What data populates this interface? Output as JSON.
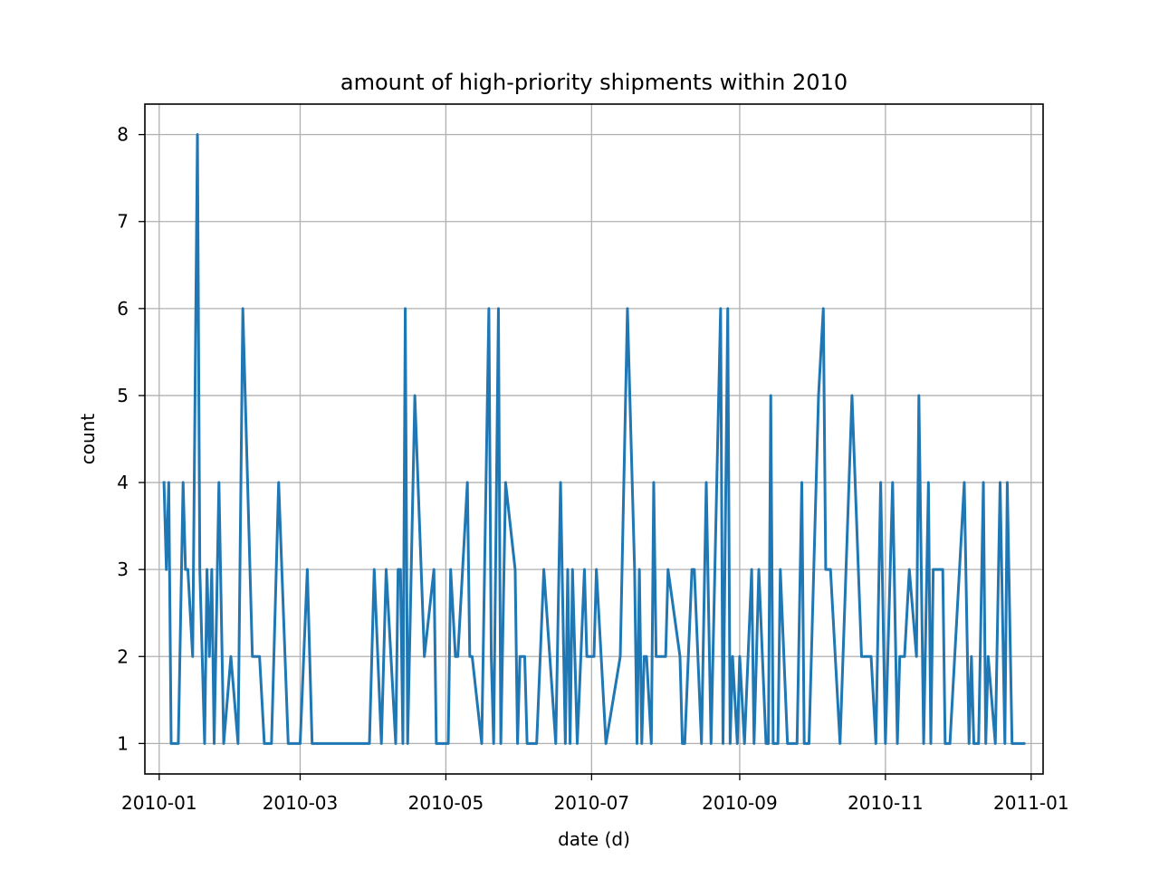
{
  "chart_data": {
    "type": "line",
    "title": "amount of high-priority shipments within 2010",
    "xlabel": "date (d)",
    "ylabel": "count",
    "x_tick_labels": [
      "2010-01",
      "2010-03",
      "2010-05",
      "2010-07",
      "2010-09",
      "2010-11",
      "2011-01"
    ],
    "y_tick_labels": [
      "1",
      "2",
      "3",
      "4",
      "5",
      "6",
      "7",
      "8"
    ],
    "xlim": [
      "2009-12-26",
      "2011-01-06"
    ],
    "ylim": [
      0.65,
      8.35
    ],
    "grid": true,
    "colors": {
      "series": "#1f77b4",
      "grid": "#b0b0b0",
      "axes": "#000000"
    },
    "series": [
      {
        "dates": [
          "2010-01-03",
          "2010-01-04",
          "2010-01-05",
          "2010-01-06",
          "2010-01-07",
          "2010-01-09",
          "2010-01-11",
          "2010-01-12",
          "2010-01-13",
          "2010-01-15",
          "2010-01-17",
          "2010-01-18",
          "2010-01-20",
          "2010-01-21",
          "2010-01-22",
          "2010-01-23",
          "2010-01-24",
          "2010-01-26",
          "2010-01-28",
          "2010-01-31",
          "2010-02-03",
          "2010-02-05",
          "2010-02-09",
          "2010-02-11",
          "2010-02-12",
          "2010-02-14",
          "2010-02-17",
          "2010-02-19",
          "2010-02-20",
          "2010-02-24",
          "2010-02-28",
          "2010-03-01",
          "2010-03-04",
          "2010-03-06",
          "2010-03-08",
          "2010-03-10",
          "2010-03-15",
          "2010-03-20",
          "2010-03-25",
          "2010-03-30",
          "2010-04-01",
          "2010-04-04",
          "2010-04-06",
          "2010-04-10",
          "2010-04-11",
          "2010-04-12",
          "2010-04-13",
          "2010-04-14",
          "2010-04-15",
          "2010-04-18",
          "2010-04-22",
          "2010-04-26",
          "2010-04-27",
          "2010-05-01",
          "2010-05-02",
          "2010-05-03",
          "2010-05-05",
          "2010-05-06",
          "2010-05-10",
          "2010-05-11",
          "2010-05-12",
          "2010-05-16",
          "2010-05-19",
          "2010-05-20",
          "2010-05-21",
          "2010-05-23",
          "2010-05-24",
          "2010-05-26",
          "2010-05-30",
          "2010-05-31",
          "2010-06-01",
          "2010-06-03",
          "2010-06-04",
          "2010-06-05",
          "2010-06-08",
          "2010-06-11",
          "2010-06-16",
          "2010-06-18",
          "2010-06-20",
          "2010-06-21",
          "2010-06-22",
          "2010-06-23",
          "2010-06-25",
          "2010-06-28",
          "2010-06-29",
          "2010-07-02",
          "2010-07-03",
          "2010-07-07",
          "2010-07-13",
          "2010-07-16",
          "2010-07-19",
          "2010-07-20",
          "2010-07-21",
          "2010-07-22",
          "2010-07-23",
          "2010-07-24",
          "2010-07-26",
          "2010-07-27",
          "2010-07-28",
          "2010-07-30",
          "2010-08-01",
          "2010-08-02",
          "2010-08-07",
          "2010-08-08",
          "2010-08-09",
          "2010-08-12",
          "2010-08-13",
          "2010-08-16",
          "2010-08-18",
          "2010-08-20",
          "2010-08-24",
          "2010-08-25",
          "2010-08-27",
          "2010-08-28",
          "2010-08-29",
          "2010-08-31",
          "2010-09-01",
          "2010-09-03",
          "2010-09-06",
          "2010-09-07",
          "2010-09-09",
          "2010-09-12",
          "2010-09-13",
          "2010-09-14",
          "2010-09-15",
          "2010-09-17",
          "2010-09-18",
          "2010-09-21",
          "2010-09-25",
          "2010-09-27",
          "2010-09-28",
          "2010-09-30",
          "2010-10-04",
          "2010-10-06",
          "2010-10-07",
          "2010-10-09",
          "2010-10-13",
          "2010-10-18",
          "2010-10-22",
          "2010-10-26",
          "2010-10-28",
          "2010-10-30",
          "2010-11-01",
          "2010-11-04",
          "2010-11-06",
          "2010-11-07",
          "2010-11-08",
          "2010-11-09",
          "2010-11-11",
          "2010-11-14",
          "2010-11-15",
          "2010-11-17",
          "2010-11-19",
          "2010-11-20",
          "2010-11-21",
          "2010-11-25",
          "2010-11-26",
          "2010-11-27",
          "2010-11-28",
          "2010-12-02",
          "2010-12-04",
          "2010-12-06",
          "2010-12-07",
          "2010-12-08",
          "2010-12-09",
          "2010-12-10",
          "2010-12-12",
          "2010-12-13",
          "2010-12-14",
          "2010-12-17",
          "2010-12-19",
          "2010-12-21",
          "2010-12-22",
          "2010-12-24",
          "2010-12-27",
          "2010-12-29"
        ],
        "values": [
          4,
          3,
          4,
          1,
          1,
          1,
          4,
          3,
          3,
          2,
          8,
          3,
          1,
          3,
          2,
          3,
          1,
          4,
          1,
          2,
          1,
          6,
          2,
          2,
          2,
          1,
          1,
          3,
          4,
          1,
          1,
          1,
          3,
          1,
          1,
          1,
          1,
          1,
          1,
          1,
          3,
          1,
          3,
          1,
          3,
          3,
          1,
          6,
          1,
          5,
          2,
          3,
          1,
          1,
          1,
          3,
          2,
          2,
          4,
          2,
          2,
          1,
          6,
          2,
          1,
          6,
          1,
          4,
          3,
          1,
          2,
          2,
          1,
          1,
          1,
          3,
          1,
          4,
          1,
          3,
          1,
          3,
          1,
          3,
          2,
          2,
          3,
          1,
          2,
          6,
          3,
          1,
          3,
          1,
          2,
          2,
          1,
          4,
          2,
          2,
          2,
          3,
          2,
          1,
          1,
          3,
          3,
          1,
          4,
          1,
          6,
          1,
          6,
          1,
          2,
          1,
          2,
          1,
          3,
          1,
          3,
          1,
          1,
          5,
          1,
          1,
          3,
          1,
          1,
          4,
          1,
          1,
          5,
          6,
          3,
          3,
          1,
          5,
          2,
          2,
          1,
          4,
          1,
          4,
          1,
          2,
          2,
          2,
          3,
          2,
          5,
          1,
          4,
          1,
          3,
          3,
          1,
          1,
          1,
          3,
          4,
          1,
          2,
          1,
          1,
          1,
          4,
          1,
          2,
          1,
          4,
          1,
          4,
          1,
          1,
          1
        ]
      }
    ]
  }
}
